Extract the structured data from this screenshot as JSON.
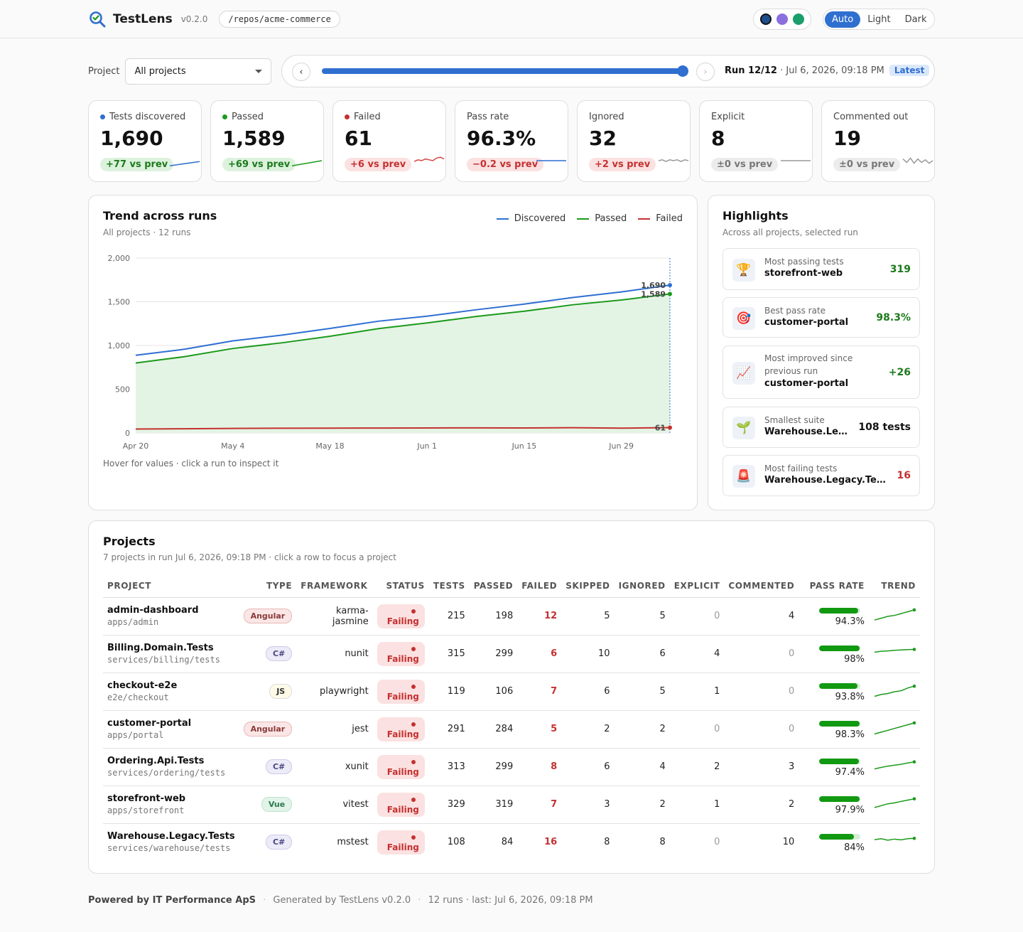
{
  "app": {
    "name": "TestLens",
    "version": "v0.2.0",
    "repo": "/repos/acme-commerce"
  },
  "palette": [
    "#1f4e8c",
    "#8a6fdf",
    "#1a9e6b"
  ],
  "theme": {
    "options": [
      "Auto",
      "Light",
      "Dark"
    ],
    "active": "Auto"
  },
  "project_filter": {
    "label": "Project",
    "value": "All projects"
  },
  "run": {
    "prev": "‹",
    "next": "›",
    "current": "Run 12/12",
    "date": "· Jul 6, 2026, 09:18 PM",
    "badge": "Latest",
    "position": 12,
    "total": 12
  },
  "stats": [
    {
      "label": "Tests discovered",
      "value": "1,690",
      "delta": "+77 vs prev",
      "tone": "good",
      "dot": "#2f6fd0",
      "spark_color": "#2f6fd0",
      "spark": [
        0.2,
        0.45
      ]
    },
    {
      "label": "Passed",
      "value": "1,589",
      "delta": "+69 vs prev",
      "tone": "good",
      "dot": "#1c9a1c",
      "spark_color": "#1c9a1c",
      "spark": [
        0.2,
        0.5
      ]
    },
    {
      "label": "Failed",
      "value": "61",
      "delta": "+6 vs prev",
      "tone": "bad",
      "dot": "#c53030",
      "spark_color": "#d64545",
      "spark": [
        0.45,
        0.55,
        0.5,
        0.6,
        0.55,
        0.5,
        0.65,
        0.7,
        0.6
      ]
    },
    {
      "label": "Pass rate",
      "value": "96.3%",
      "delta": "−0.2 vs prev",
      "tone": "bad",
      "dot": "",
      "spark_color": "#2f6fd0",
      "spark": [
        0.5,
        0.5
      ]
    },
    {
      "label": "Ignored",
      "value": "32",
      "delta": "+2 vs prev",
      "tone": "bad",
      "dot": "",
      "spark_color": "#999999",
      "spark": [
        0.5,
        0.55,
        0.45,
        0.55,
        0.5,
        0.55,
        0.45,
        0.55,
        0.5
      ]
    },
    {
      "label": "Explicit",
      "value": "8",
      "delta": "±0 vs prev",
      "tone": "neutral",
      "dot": "",
      "spark_color": "#999999",
      "spark": [
        0.5,
        0.5
      ]
    },
    {
      "label": "Commented out",
      "value": "19",
      "delta": "±0 vs prev",
      "tone": "neutral",
      "dot": "",
      "spark_color": "#999999",
      "spark": [
        0.6,
        0.4,
        0.65,
        0.35,
        0.6,
        0.4,
        0.55,
        0.35,
        0.5
      ]
    }
  ],
  "trend": {
    "title": "Trend across runs",
    "subtitle": "All projects · 12 runs",
    "hint": "Hover for values · click a run to inspect it"
  },
  "chart_data": {
    "type": "line",
    "x": [
      "Apr 20",
      "Apr 27",
      "May 4",
      "May 11",
      "May 18",
      "May 25",
      "Jun 1",
      "Jun 8",
      "Jun 15",
      "Jun 22",
      "Jun 29",
      "Jul 6"
    ],
    "xticks": [
      "Apr 20",
      "May 4",
      "May 18",
      "Jun 1",
      "Jun 15",
      "Jun 29"
    ],
    "series": [
      {
        "name": "Discovered",
        "color": "#2f6fd0",
        "values": [
          888,
          957,
          1053,
          1118,
          1195,
          1278,
          1335,
          1408,
          1474,
          1549,
          1613,
          1690
        ]
      },
      {
        "name": "Passed",
        "color": "#1c9a1c",
        "values": [
          800,
          872,
          966,
          1030,
          1106,
          1193,
          1258,
          1331,
          1392,
          1466,
          1520,
          1589
        ]
      },
      {
        "name": "Failed",
        "color": "#c53030",
        "values": [
          45,
          48,
          52,
          54,
          55,
          56,
          57,
          58,
          57,
          60,
          55,
          61
        ]
      }
    ],
    "ylim": [
      0,
      2000
    ],
    "yticks": [
      0,
      500,
      1000,
      1500,
      2000
    ],
    "ytick_labels": [
      "0",
      "500",
      "1,000",
      "1,500",
      "2,000"
    ],
    "end_labels": [
      "1,690",
      "1,589",
      "61"
    ],
    "grid": true,
    "legend": "top-right"
  },
  "highlights": {
    "title": "Highlights",
    "subtitle": "Across all projects, selected run",
    "items": [
      {
        "icon": "🏆",
        "icon_name": "trophy-icon",
        "label": "Most passing tests",
        "name": "storefront-web",
        "value": "319",
        "color": "#1c7a1c"
      },
      {
        "icon": "🎯",
        "icon_name": "target-icon",
        "label": "Best pass rate",
        "name": "customer-portal",
        "value": "98.3%",
        "color": "#1c7a1c"
      },
      {
        "icon": "📈",
        "icon_name": "chart-up-icon",
        "label": "Most improved since previous run",
        "name": "customer-portal",
        "value": "+26",
        "color": "#1c7a1c"
      },
      {
        "icon": "🌱",
        "icon_name": "seedling-icon",
        "label": "Smallest suite",
        "name": "Warehouse.Legacy.Tests",
        "value": "108 tests",
        "color": "#111111"
      },
      {
        "icon": "🚨",
        "icon_name": "siren-icon",
        "label": "Most failing tests",
        "name": "Warehouse.Legacy.Tests",
        "value": "16",
        "color": "#c53030"
      }
    ]
  },
  "projects": {
    "title": "Projects",
    "subtitle": "7 projects in run Jul 6, 2026, 09:18 PM · click a row to focus a project",
    "columns": [
      "PROJECT",
      "TYPE",
      "FRAMEWORK",
      "STATUS",
      "TESTS",
      "PASSED",
      "FAILED",
      "SKIPPED",
      "IGNORED",
      "EXPLICIT",
      "COMMENTED",
      "PASS RATE",
      "TREND"
    ],
    "rows": [
      {
        "name": "admin-dashboard",
        "path": "apps/admin",
        "type": "Angular",
        "framework": "karma-jasmine",
        "status": "Failing",
        "tests": "215",
        "passed": "198",
        "failed": "12",
        "skipped": "5",
        "ignored": "5",
        "explicit": "0",
        "commented": "4",
        "rate": "94.3%",
        "rate_value": 94.3,
        "trend": [
          0.3,
          0.4,
          0.5,
          0.55,
          0.65,
          0.75,
          0.85
        ]
      },
      {
        "name": "Billing.Domain.Tests",
        "path": "services/billing/tests",
        "type": "C#",
        "framework": "nunit",
        "status": "Failing",
        "tests": "315",
        "passed": "299",
        "failed": "6",
        "skipped": "10",
        "ignored": "6",
        "explicit": "4",
        "commented": "0",
        "rate": "98%",
        "rate_value": 98,
        "trend": [
          0.6,
          0.65,
          0.67,
          0.7,
          0.72,
          0.74,
          0.75
        ]
      },
      {
        "name": "checkout-e2e",
        "path": "e2e/checkout",
        "type": "JS",
        "framework": "playwright",
        "status": "Failing",
        "tests": "119",
        "passed": "106",
        "failed": "7",
        "skipped": "6",
        "ignored": "5",
        "explicit": "1",
        "commented": "0",
        "rate": "93.8%",
        "rate_value": 93.8,
        "trend": [
          0.25,
          0.35,
          0.4,
          0.5,
          0.55,
          0.7,
          0.8
        ]
      },
      {
        "name": "customer-portal",
        "path": "apps/portal",
        "type": "Angular",
        "framework": "jest",
        "status": "Failing",
        "tests": "291",
        "passed": "284",
        "failed": "5",
        "skipped": "2",
        "ignored": "2",
        "explicit": "0",
        "commented": "0",
        "rate": "98.3%",
        "rate_value": 98.3,
        "trend": [
          0.25,
          0.35,
          0.45,
          0.55,
          0.65,
          0.75,
          0.85
        ]
      },
      {
        "name": "Ordering.Api.Tests",
        "path": "services/ordering/tests",
        "type": "C#",
        "framework": "xunit",
        "status": "Failing",
        "tests": "313",
        "passed": "299",
        "failed": "8",
        "skipped": "6",
        "ignored": "4",
        "explicit": "2",
        "commented": "3",
        "rate": "97.4%",
        "rate_value": 97.4,
        "trend": [
          0.4,
          0.48,
          0.55,
          0.6,
          0.65,
          0.72,
          0.78
        ]
      },
      {
        "name": "storefront-web",
        "path": "apps/storefront",
        "type": "Vue",
        "framework": "vitest",
        "status": "Failing",
        "tests": "329",
        "passed": "319",
        "failed": "7",
        "skipped": "3",
        "ignored": "2",
        "explicit": "1",
        "commented": "2",
        "rate": "97.9%",
        "rate_value": 97.9,
        "trend": [
          0.35,
          0.45,
          0.55,
          0.6,
          0.68,
          0.75,
          0.82
        ]
      },
      {
        "name": "Warehouse.Legacy.Tests",
        "path": "services/warehouse/tests",
        "type": "C#",
        "framework": "mstest",
        "status": "Failing",
        "tests": "108",
        "passed": "84",
        "failed": "16",
        "skipped": "8",
        "ignored": "8",
        "explicit": "0",
        "commented": "10",
        "rate": "84%",
        "rate_value": 84,
        "trend": [
          0.65,
          0.7,
          0.62,
          0.68,
          0.64,
          0.7,
          0.72
        ]
      }
    ]
  },
  "type_colors": {
    "Angular": {
      "bg": "#fbe6e6",
      "fg": "#8a3a3a",
      "bd": "#e7b8b8"
    },
    "C#": {
      "bg": "#ecebf8",
      "fg": "#4a4680",
      "bd": "#cfcbe8"
    },
    "JS": {
      "bg": "#fdfbe8",
      "fg": "#333333",
      "bd": "#dcdcdc"
    },
    "Vue": {
      "bg": "#e2f4ea",
      "fg": "#2a7a4e",
      "bd": "#bfe3cd"
    }
  },
  "footer": {
    "brand": "Powered by IT Performance ApS",
    "generated": "Generated by TestLens v0.2.0",
    "runs": "12 runs · last: Jul 6, 2026, 09:18 PM",
    "sep": "·"
  }
}
